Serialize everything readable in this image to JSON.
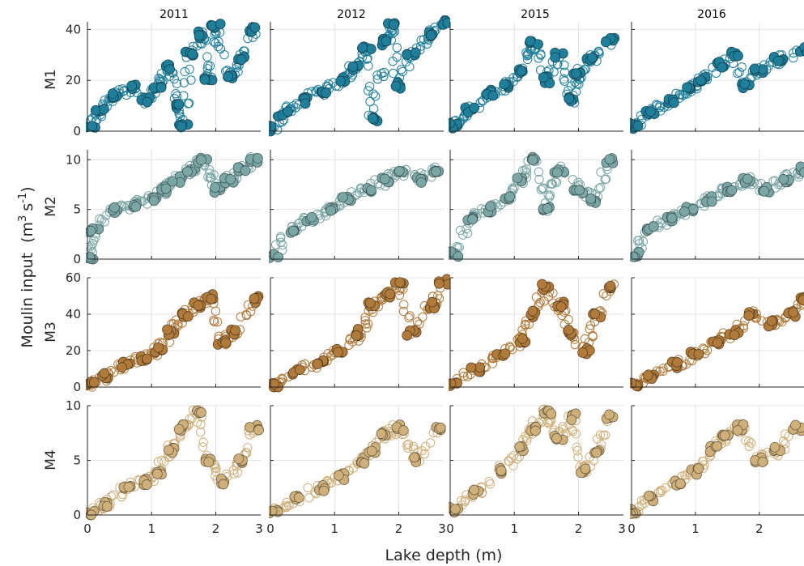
{
  "chart_data": {
    "type": "scatter",
    "layout": "small-multiples grid, 4 rows (moulins) x 4 columns (years)",
    "columns": [
      "2011",
      "2012",
      "2015",
      "2016"
    ],
    "rows": [
      {
        "label": "M1",
        "color": "#1f7f9b",
        "ylim": [
          0,
          43
        ],
        "yticks": [
          "0",
          "20",
          "40"
        ],
        "ytick_values": [
          0,
          20,
          40
        ]
      },
      {
        "label": "M2",
        "color": "#7aa6a6",
        "ylim": [
          0,
          11
        ],
        "yticks": [
          "0",
          "5",
          "10"
        ],
        "ytick_values": [
          0,
          5,
          10
        ]
      },
      {
        "label": "M3",
        "color": "#b07a3a",
        "ylim": [
          0,
          60
        ],
        "yticks": [
          "0",
          "20",
          "40",
          "60"
        ],
        "ytick_values": [
          0,
          20,
          40,
          60
        ]
      },
      {
        "label": "M4",
        "color": "#cfb07a",
        "ylim": [
          0,
          10
        ],
        "yticks": [
          "0",
          "5",
          "10"
        ],
        "ytick_values": [
          0,
          5,
          10
        ]
      }
    ],
    "xlim": [
      0,
      2.7
    ],
    "xticks": [
      "0",
      "1",
      "2",
      "3"
    ],
    "xtick_values": [
      0,
      1,
      2,
      3
    ],
    "xlabel": "Lake depth (m)",
    "ylabel": "Moulin input",
    "ylabel_unit_base": "m",
    "ylabel_unit_exp1": "3",
    "ylabel_unit_mid": "s",
    "ylabel_unit_exp2": "-1",
    "grid": true,
    "marker_styles": {
      "filled": "filled circle with dark edge",
      "open": "hollow circle in series color"
    },
    "panels": {
      "M1": {
        "2011": [
          [
            0.05,
            2
          ],
          [
            0.2,
            8
          ],
          [
            0.4,
            14
          ],
          [
            0.7,
            17
          ],
          [
            0.9,
            12
          ],
          [
            1.1,
            18
          ],
          [
            1.3,
            25
          ],
          [
            1.4,
            10
          ],
          [
            1.5,
            2
          ],
          [
            1.6,
            30
          ],
          [
            1.8,
            38
          ],
          [
            1.9,
            20
          ],
          [
            2.0,
            42
          ],
          [
            2.2,
            22
          ],
          [
            2.4,
            28
          ],
          [
            2.6,
            40
          ]
        ],
        "2012": [
          [
            0.05,
            1
          ],
          [
            0.2,
            7
          ],
          [
            0.5,
            12
          ],
          [
            0.8,
            16
          ],
          [
            1.1,
            20
          ],
          [
            1.3,
            25
          ],
          [
            1.5,
            32
          ],
          [
            1.6,
            5
          ],
          [
            1.8,
            35
          ],
          [
            1.9,
            42
          ],
          [
            2.0,
            18
          ],
          [
            2.2,
            30
          ],
          [
            2.5,
            38
          ],
          [
            2.7,
            43
          ]
        ],
        "2015": [
          [
            0.05,
            2
          ],
          [
            0.3,
            8
          ],
          [
            0.6,
            15
          ],
          [
            0.9,
            18
          ],
          [
            1.1,
            24
          ],
          [
            1.3,
            35
          ],
          [
            1.5,
            20
          ],
          [
            1.7,
            30
          ],
          [
            1.9,
            12
          ],
          [
            2.0,
            22
          ],
          [
            2.2,
            28
          ],
          [
            2.5,
            36
          ]
        ],
        "2016": [
          [
            0.05,
            2
          ],
          [
            0.3,
            8
          ],
          [
            0.6,
            12
          ],
          [
            0.9,
            16
          ],
          [
            1.1,
            20
          ],
          [
            1.4,
            26
          ],
          [
            1.6,
            30
          ],
          [
            1.8,
            18
          ],
          [
            2.0,
            24
          ],
          [
            2.3,
            28
          ],
          [
            2.7,
            32
          ]
        ]
      },
      "M2": {
        "2011": [
          [
            0.05,
            0.2
          ],
          [
            0.1,
            3
          ],
          [
            0.4,
            5
          ],
          [
            0.7,
            5.5
          ],
          [
            1.0,
            6
          ],
          [
            1.2,
            7
          ],
          [
            1.4,
            8
          ],
          [
            1.6,
            9
          ],
          [
            1.8,
            10
          ],
          [
            2.0,
            7
          ],
          [
            2.2,
            8
          ],
          [
            2.4,
            9
          ],
          [
            2.6,
            10
          ]
        ],
        "2012": [
          [
            0.05,
            0.2
          ],
          [
            0.3,
            3
          ],
          [
            0.6,
            4
          ],
          [
            0.9,
            5
          ],
          [
            1.2,
            6
          ],
          [
            1.5,
            7
          ],
          [
            1.8,
            8
          ],
          [
            2.0,
            9
          ],
          [
            2.3,
            8
          ],
          [
            2.6,
            9
          ]
        ],
        "2015": [
          [
            0.05,
            0.5
          ],
          [
            0.3,
            4
          ],
          [
            0.6,
            5
          ],
          [
            0.9,
            6
          ],
          [
            1.1,
            8
          ],
          [
            1.3,
            10
          ],
          [
            1.5,
            5
          ],
          [
            1.7,
            9
          ],
          [
            2.0,
            7
          ],
          [
            2.2,
            6
          ],
          [
            2.5,
            10
          ]
        ],
        "2016": [
          [
            0.05,
            0.5
          ],
          [
            0.3,
            3
          ],
          [
            0.6,
            4
          ],
          [
            0.9,
            5
          ],
          [
            1.2,
            6
          ],
          [
            1.5,
            7
          ],
          [
            1.8,
            8
          ],
          [
            2.1,
            7
          ],
          [
            2.4,
            8
          ],
          [
            2.7,
            9
          ]
        ]
      },
      "M3": {
        "2011": [
          [
            0.05,
            1
          ],
          [
            0.3,
            6
          ],
          [
            0.6,
            12
          ],
          [
            0.9,
            16
          ],
          [
            1.1,
            20
          ],
          [
            1.3,
            30
          ],
          [
            1.5,
            40
          ],
          [
            1.7,
            45
          ],
          [
            1.9,
            50
          ],
          [
            2.1,
            25
          ],
          [
            2.3,
            30
          ],
          [
            2.6,
            48
          ]
        ],
        "2012": [
          [
            0.05,
            1
          ],
          [
            0.4,
            8
          ],
          [
            0.8,
            14
          ],
          [
            1.1,
            20
          ],
          [
            1.4,
            30
          ],
          [
            1.6,
            45
          ],
          [
            1.8,
            50
          ],
          [
            2.0,
            58
          ],
          [
            2.2,
            30
          ],
          [
            2.5,
            45
          ],
          [
            2.7,
            58
          ]
        ],
        "2015": [
          [
            0.05,
            2
          ],
          [
            0.4,
            10
          ],
          [
            0.8,
            18
          ],
          [
            1.1,
            26
          ],
          [
            1.3,
            40
          ],
          [
            1.5,
            55
          ],
          [
            1.7,
            45
          ],
          [
            1.9,
            30
          ],
          [
            2.1,
            20
          ],
          [
            2.3,
            40
          ],
          [
            2.5,
            55
          ]
        ],
        "2016": [
          [
            0.05,
            1
          ],
          [
            0.3,
            6
          ],
          [
            0.7,
            12
          ],
          [
            1.0,
            18
          ],
          [
            1.3,
            24
          ],
          [
            1.6,
            30
          ],
          [
            1.9,
            40
          ],
          [
            2.2,
            35
          ],
          [
            2.5,
            40
          ],
          [
            2.7,
            48
          ]
        ]
      },
      "M4": {
        "2011": [
          [
            0.05,
            0.2
          ],
          [
            0.3,
            1
          ],
          [
            0.6,
            2.5
          ],
          [
            0.9,
            3
          ],
          [
            1.1,
            4
          ],
          [
            1.3,
            6
          ],
          [
            1.5,
            8
          ],
          [
            1.7,
            9.5
          ],
          [
            1.9,
            5
          ],
          [
            2.1,
            3
          ],
          [
            2.4,
            5
          ],
          [
            2.6,
            8
          ]
        ],
        "2012": [
          [
            0.05,
            0.2
          ],
          [
            0.4,
            1.5
          ],
          [
            0.8,
            2.5
          ],
          [
            1.1,
            3.5
          ],
          [
            1.4,
            5
          ],
          [
            1.6,
            6
          ],
          [
            1.8,
            7.5
          ],
          [
            2.0,
            8
          ],
          [
            2.3,
            5
          ],
          [
            2.6,
            8
          ]
        ],
        "2015": [
          [
            0.05,
            0.5
          ],
          [
            0.4,
            2
          ],
          [
            0.8,
            4
          ],
          [
            1.1,
            6
          ],
          [
            1.3,
            8
          ],
          [
            1.5,
            9.5
          ],
          [
            1.7,
            7
          ],
          [
            1.9,
            9
          ],
          [
            2.1,
            4
          ],
          [
            2.3,
            6
          ],
          [
            2.5,
            9
          ]
        ],
        "2016": [
          [
            0.05,
            0.3
          ],
          [
            0.3,
            1.5
          ],
          [
            0.7,
            3
          ],
          [
            1.0,
            4
          ],
          [
            1.3,
            6
          ],
          [
            1.5,
            7.5
          ],
          [
            1.7,
            8
          ],
          [
            2.0,
            5
          ],
          [
            2.3,
            6
          ],
          [
            2.6,
            8
          ]
        ]
      }
    }
  }
}
